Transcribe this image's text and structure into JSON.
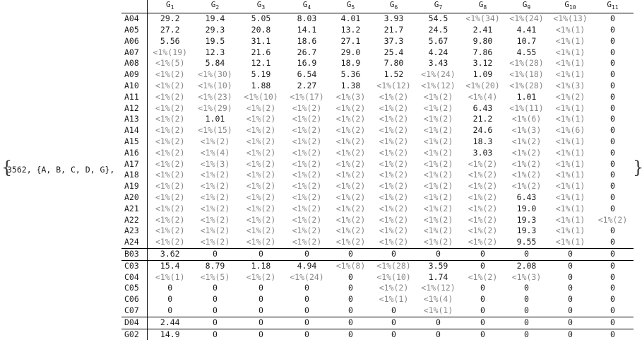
{
  "prefix": "3562, {A, B, C, D, G},",
  "brace_open": "{",
  "brace_close": "}",
  "columns": [
    {
      "base": "G",
      "sub": "1"
    },
    {
      "base": "G",
      "sub": "2"
    },
    {
      "base": "G",
      "sub": "3"
    },
    {
      "base": "G",
      "sub": "4"
    },
    {
      "base": "G",
      "sub": "5"
    },
    {
      "base": "G",
      "sub": "6"
    },
    {
      "base": "G",
      "sub": "7"
    },
    {
      "base": "G",
      "sub": "8"
    },
    {
      "base": "G",
      "sub": "9"
    },
    {
      "base": "G",
      "sub": "10"
    },
    {
      "base": "G",
      "sub": "11"
    }
  ],
  "rows": [
    {
      "label": "A04",
      "cells": [
        "29.2",
        "19.4",
        "5.05",
        "8.03",
        "4.01",
        "3.93",
        "54.5",
        "<1%(34)",
        "<1%(24)",
        "<1%(13)",
        "0"
      ]
    },
    {
      "label": "A05",
      "cells": [
        "27.2",
        "29.3",
        "20.8",
        "14.1",
        "13.2",
        "21.7",
        "24.5",
        "2.41",
        "4.41",
        "<1%(1)",
        "0"
      ]
    },
    {
      "label": "A06",
      "cells": [
        "5.56",
        "19.5",
        "31.1",
        "18.6",
        "27.1",
        "37.3",
        "5.67",
        "9.80",
        "10.7",
        "<1%(1)",
        "0"
      ]
    },
    {
      "label": "A07",
      "cells": [
        "<1%(19)",
        "12.3",
        "21.6",
        "26.7",
        "29.0",
        "25.4",
        "4.24",
        "7.86",
        "4.55",
        "<1%(1)",
        "0"
      ]
    },
    {
      "label": "A08",
      "cells": [
        "<1%(5)",
        "5.84",
        "12.1",
        "16.9",
        "18.9",
        "7.80",
        "3.43",
        "3.12",
        "<1%(28)",
        "<1%(1)",
        "0"
      ]
    },
    {
      "label": "A09",
      "cells": [
        "<1%(2)",
        "<1%(30)",
        "5.19",
        "6.54",
        "5.36",
        "1.52",
        "<1%(24)",
        "1.09",
        "<1%(18)",
        "<1%(1)",
        "0"
      ]
    },
    {
      "label": "A10",
      "cells": [
        "<1%(2)",
        "<1%(10)",
        "1.88",
        "2.27",
        "1.38",
        "<1%(12)",
        "<1%(12)",
        "<1%(20)",
        "<1%(28)",
        "<1%(3)",
        "0"
      ]
    },
    {
      "label": "A11",
      "cells": [
        "<1%(2)",
        "<1%(23)",
        "<1%(10)",
        "<1%(17)",
        "<1%(3)",
        "<1%(2)",
        "<1%(2)",
        "<1%(4)",
        "1.01",
        "<1%(2)",
        "0"
      ]
    },
    {
      "label": "A12",
      "cells": [
        "<1%(2)",
        "<1%(29)",
        "<1%(2)",
        "<1%(2)",
        "<1%(2)",
        "<1%(2)",
        "<1%(2)",
        "6.43",
        "<1%(11)",
        "<1%(1)",
        "0"
      ]
    },
    {
      "label": "A13",
      "cells": [
        "<1%(2)",
        "1.01",
        "<1%(2)",
        "<1%(2)",
        "<1%(2)",
        "<1%(2)",
        "<1%(2)",
        "21.2",
        "<1%(6)",
        "<1%(1)",
        "0"
      ]
    },
    {
      "label": "A14",
      "cells": [
        "<1%(2)",
        "<1%(15)",
        "<1%(2)",
        "<1%(2)",
        "<1%(2)",
        "<1%(2)",
        "<1%(2)",
        "24.6",
        "<1%(3)",
        "<1%(6)",
        "0"
      ]
    },
    {
      "label": "A15",
      "cells": [
        "<1%(2)",
        "<1%(2)",
        "<1%(2)",
        "<1%(2)",
        "<1%(2)",
        "<1%(2)",
        "<1%(2)",
        "18.3",
        "<1%(2)",
        "<1%(1)",
        "0"
      ]
    },
    {
      "label": "A16",
      "cells": [
        "<1%(2)",
        "<1%(4)",
        "<1%(2)",
        "<1%(2)",
        "<1%(2)",
        "<1%(2)",
        "<1%(2)",
        "3.03",
        "<1%(2)",
        "<1%(1)",
        "0"
      ]
    },
    {
      "label": "A17",
      "cells": [
        "<1%(2)",
        "<1%(3)",
        "<1%(2)",
        "<1%(2)",
        "<1%(2)",
        "<1%(2)",
        "<1%(2)",
        "<1%(2)",
        "<1%(2)",
        "<1%(1)",
        "0"
      ]
    },
    {
      "label": "A18",
      "cells": [
        "<1%(2)",
        "<1%(2)",
        "<1%(2)",
        "<1%(2)",
        "<1%(2)",
        "<1%(2)",
        "<1%(2)",
        "<1%(2)",
        "<1%(2)",
        "<1%(1)",
        "0"
      ]
    },
    {
      "label": "A19",
      "cells": [
        "<1%(2)",
        "<1%(2)",
        "<1%(2)",
        "<1%(2)",
        "<1%(2)",
        "<1%(2)",
        "<1%(2)",
        "<1%(2)",
        "<1%(2)",
        "<1%(1)",
        "0"
      ]
    },
    {
      "label": "A20",
      "cells": [
        "<1%(2)",
        "<1%(2)",
        "<1%(2)",
        "<1%(2)",
        "<1%(2)",
        "<1%(2)",
        "<1%(2)",
        "<1%(2)",
        "6.43",
        "<1%(1)",
        "0"
      ]
    },
    {
      "label": "A21",
      "cells": [
        "<1%(2)",
        "<1%(2)",
        "<1%(2)",
        "<1%(2)",
        "<1%(2)",
        "<1%(2)",
        "<1%(2)",
        "<1%(2)",
        "19.0",
        "<1%(1)",
        "0"
      ]
    },
    {
      "label": "A22",
      "cells": [
        "<1%(2)",
        "<1%(2)",
        "<1%(2)",
        "<1%(2)",
        "<1%(2)",
        "<1%(2)",
        "<1%(2)",
        "<1%(2)",
        "19.3",
        "<1%(1)",
        "<1%(2)"
      ]
    },
    {
      "label": "A23",
      "cells": [
        "<1%(2)",
        "<1%(2)",
        "<1%(2)",
        "<1%(2)",
        "<1%(2)",
        "<1%(2)",
        "<1%(2)",
        "<1%(2)",
        "19.3",
        "<1%(1)",
        "0"
      ]
    },
    {
      "label": "A24",
      "cells": [
        "<1%(2)",
        "<1%(2)",
        "<1%(2)",
        "<1%(2)",
        "<1%(2)",
        "<1%(2)",
        "<1%(2)",
        "<1%(2)",
        "9.55",
        "<1%(1)",
        "0"
      ]
    },
    {
      "label": "B03",
      "sep": true,
      "cells": [
        "3.62",
        "0",
        "0",
        "0",
        "0",
        "0",
        "0",
        "0",
        "0",
        "0",
        "0"
      ]
    },
    {
      "label": "C03",
      "sep": true,
      "cells": [
        "15.4",
        "8.79",
        "1.18",
        "4.94",
        "<1%(8)",
        "<1%(28)",
        "3.59",
        "0",
        "2.08",
        "0",
        "0"
      ]
    },
    {
      "label": "C04",
      "cells": [
        "<1%(1)",
        "<1%(5)",
        "<1%(2)",
        "<1%(24)",
        "0",
        "<1%(10)",
        "1.74",
        "<1%(2)",
        "<1%(3)",
        "0",
        "0"
      ]
    },
    {
      "label": "C05",
      "cells": [
        "0",
        "0",
        "0",
        "0",
        "0",
        "<1%(2)",
        "<1%(12)",
        "0",
        "0",
        "0",
        "0"
      ]
    },
    {
      "label": "C06",
      "cells": [
        "0",
        "0",
        "0",
        "0",
        "0",
        "<1%(1)",
        "<1%(4)",
        "0",
        "0",
        "0",
        "0"
      ]
    },
    {
      "label": "C07",
      "cells": [
        "0",
        "0",
        "0",
        "0",
        "0",
        "0",
        "<1%(1)",
        "0",
        "0",
        "0",
        "0"
      ]
    },
    {
      "label": "D04",
      "sep": true,
      "cells": [
        "2.44",
        "0",
        "0",
        "0",
        "0",
        "0",
        "0",
        "0",
        "0",
        "0",
        "0"
      ]
    },
    {
      "label": "G02",
      "sep": true,
      "cells": [
        "14.9",
        "0",
        "0",
        "0",
        "0",
        "0",
        "0",
        "0",
        "0",
        "0",
        "0"
      ]
    }
  ]
}
